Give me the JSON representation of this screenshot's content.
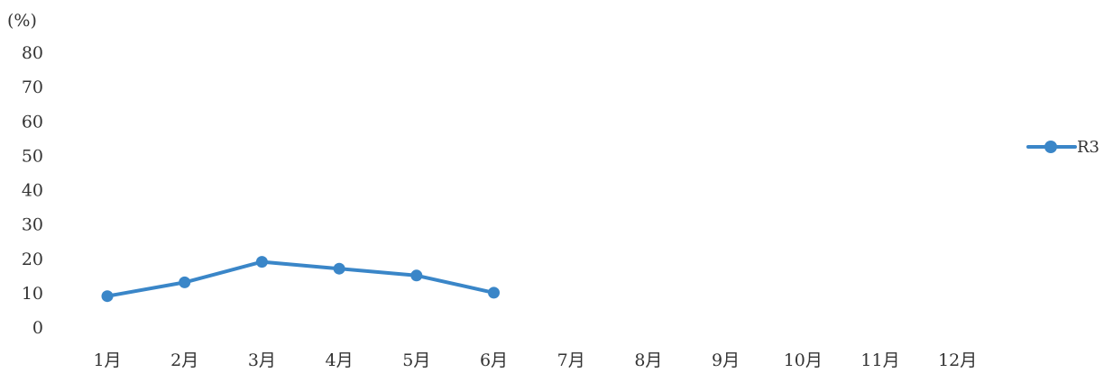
{
  "chart_data": {
    "type": "line",
    "unit_label": "(%)",
    "categories": [
      "1月",
      "2月",
      "3月",
      "4月",
      "5月",
      "6月",
      "7月",
      "8月",
      "9月",
      "10月",
      "11月",
      "12月"
    ],
    "y_ticks": [
      "0",
      "10",
      "20",
      "30",
      "40",
      "50",
      "60",
      "70",
      "80"
    ],
    "ylim": [
      0,
      80
    ],
    "grid": false,
    "legend_position": "right",
    "series": [
      {
        "name": "R3",
        "color": "#3a86c8",
        "values": [
          9,
          13,
          19,
          17,
          15,
          10,
          null,
          null,
          null,
          null,
          null,
          null
        ]
      }
    ]
  }
}
